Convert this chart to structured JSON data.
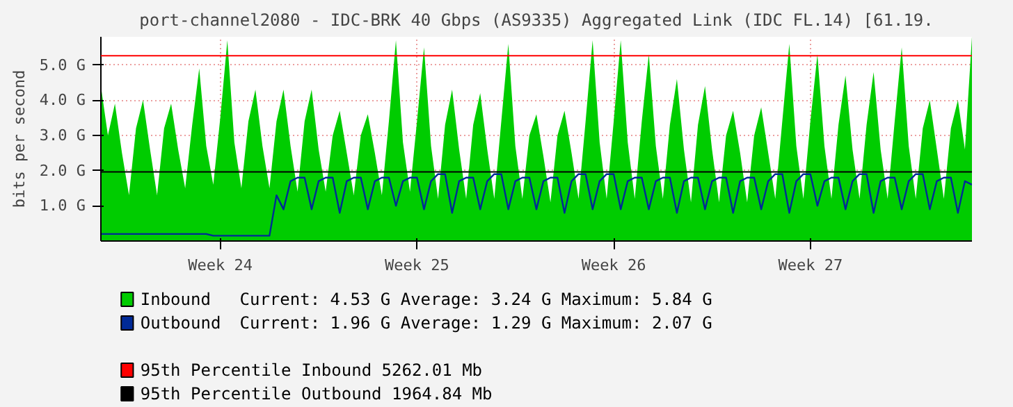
{
  "chart_data": {
    "type": "area",
    "title": "port-channel2080 - IDC-BRK 40 Gbps (AS9335) Aggregated Link (IDC FL.14) [61.19.",
    "ylabel": "bits per second",
    "categories": [
      null,
      null,
      null,
      null,
      null,
      null,
      null,
      null,
      null,
      null,
      null,
      null,
      null,
      null,
      null,
      null,
      null,
      "Week 24",
      null,
      null,
      null,
      null,
      null,
      null,
      null,
      null,
      null,
      null,
      null,
      null,
      null,
      null,
      null,
      null,
      null,
      null,
      null,
      null,
      null,
      null,
      null,
      null,
      null,
      null,
      null,
      "Week 25",
      null,
      null,
      null,
      null,
      null,
      null,
      null,
      null,
      null,
      null,
      null,
      null,
      null,
      null,
      null,
      null,
      null,
      null,
      null,
      null,
      null,
      null,
      null,
      null,
      null,
      null,
      null,
      "Week 26",
      null,
      null,
      null,
      null,
      null,
      null,
      null,
      null,
      null,
      null,
      null,
      null,
      null,
      null,
      null,
      null,
      null,
      null,
      null,
      null,
      null,
      null,
      null,
      null,
      null,
      null,
      null,
      "Week 27",
      null,
      null,
      null,
      null,
      null,
      null,
      null,
      null,
      null,
      null,
      null,
      null,
      null,
      null,
      null,
      null,
      null,
      null,
      null,
      null,
      null,
      null,
      null
    ],
    "ylim": [
      0,
      5.8
    ],
    "yticks": [
      {
        "value": 1,
        "label": "1.0 G"
      },
      {
        "value": 2,
        "label": "2.0 G"
      },
      {
        "value": 3,
        "label": "3.0 G"
      },
      {
        "value": 4,
        "label": "4.0 G"
      },
      {
        "value": 5,
        "label": "5.0 G"
      }
    ],
    "grid": true,
    "legend": "bottom",
    "series": [
      {
        "name": "Inbound",
        "color": "#00cc00",
        "values": [
          4.4,
          3.0,
          3.9,
          2.5,
          1.3,
          3.2,
          4.0,
          2.6,
          1.3,
          3.2,
          3.9,
          2.6,
          1.5,
          3.3,
          4.9,
          2.7,
          1.6,
          3.5,
          5.7,
          2.8,
          1.5,
          3.4,
          4.3,
          2.7,
          1.5,
          3.4,
          4.3,
          2.7,
          1.4,
          3.4,
          4.3,
          2.6,
          1.4,
          3.0,
          3.7,
          2.5,
          1.3,
          3.0,
          3.6,
          2.5,
          1.3,
          3.4,
          5.7,
          2.8,
          1.4,
          3.4,
          5.5,
          2.7,
          1.2,
          3.3,
          4.3,
          2.6,
          1.2,
          3.3,
          4.2,
          2.6,
          1.2,
          3.4,
          5.6,
          2.7,
          1.2,
          3.0,
          3.6,
          2.4,
          1.1,
          3.0,
          3.7,
          2.5,
          1.2,
          3.4,
          5.7,
          2.8,
          1.2,
          3.4,
          5.7,
          2.8,
          1.2,
          3.4,
          5.3,
          2.7,
          1.2,
          3.3,
          4.6,
          2.6,
          1.1,
          3.3,
          4.4,
          2.6,
          1.1,
          3.0,
          3.7,
          2.5,
          1.1,
          3.0,
          3.8,
          2.5,
          1.2,
          3.4,
          5.6,
          2.7,
          1.2,
          3.4,
          5.3,
          2.7,
          1.2,
          3.3,
          4.7,
          2.6,
          1.2,
          3.3,
          4.8,
          2.6,
          1.2,
          3.4,
          5.5,
          2.7,
          1.2,
          3.2,
          4.0,
          2.6,
          1.2,
          3.2,
          4.0,
          2.6,
          5.8
        ]
      },
      {
        "name": "Outbound",
        "type": "line",
        "color": "#002a97",
        "values": [
          0.2,
          0.2,
          0.2,
          0.2,
          0.2,
          0.2,
          0.2,
          0.2,
          0.2,
          0.2,
          0.2,
          0.2,
          0.2,
          0.2,
          0.2,
          0.2,
          0.15,
          0.15,
          0.15,
          0.15,
          0.15,
          0.15,
          0.15,
          0.15,
          0.15,
          1.3,
          0.9,
          1.7,
          1.8,
          1.8,
          0.9,
          1.7,
          1.8,
          1.8,
          0.8,
          1.7,
          1.8,
          1.8,
          0.9,
          1.7,
          1.8,
          1.8,
          1.0,
          1.7,
          1.8,
          1.8,
          0.9,
          1.7,
          1.9,
          1.9,
          0.8,
          1.7,
          1.8,
          1.8,
          0.9,
          1.7,
          1.9,
          1.9,
          0.9,
          1.7,
          1.8,
          1.8,
          0.9,
          1.7,
          1.8,
          1.8,
          0.8,
          1.7,
          1.9,
          1.9,
          0.9,
          1.7,
          1.9,
          1.9,
          0.9,
          1.7,
          1.8,
          1.8,
          0.9,
          1.7,
          1.8,
          1.8,
          0.8,
          1.7,
          1.8,
          1.8,
          0.9,
          1.7,
          1.8,
          1.8,
          0.8,
          1.7,
          1.8,
          1.8,
          0.9,
          1.7,
          1.9,
          1.9,
          0.8,
          1.7,
          1.9,
          1.9,
          1.0,
          1.7,
          1.8,
          1.8,
          0.9,
          1.7,
          1.9,
          1.9,
          0.8,
          1.7,
          1.8,
          1.8,
          0.9,
          1.7,
          1.9,
          1.9,
          0.9,
          1.7,
          1.8,
          1.8,
          0.8,
          1.7,
          1.6
        ]
      }
    ],
    "annotations": [
      "Current:    4.53 G  Average:    3.24 G  Maximum:    5.84 G",
      "Current:    1.96 G  Average:    1.29 G  Maximum:    2.07 G"
    ],
    "ref_lines": [
      {
        "axis": "y",
        "value": 5.262,
        "label": "95th Percentile Inbound  5262.01 Mb",
        "color": "#ff0000"
      },
      {
        "axis": "y",
        "value": 1.965,
        "label": "95th Percentile Outbound  1964.84 Mb",
        "color": "#000000"
      }
    ]
  }
}
